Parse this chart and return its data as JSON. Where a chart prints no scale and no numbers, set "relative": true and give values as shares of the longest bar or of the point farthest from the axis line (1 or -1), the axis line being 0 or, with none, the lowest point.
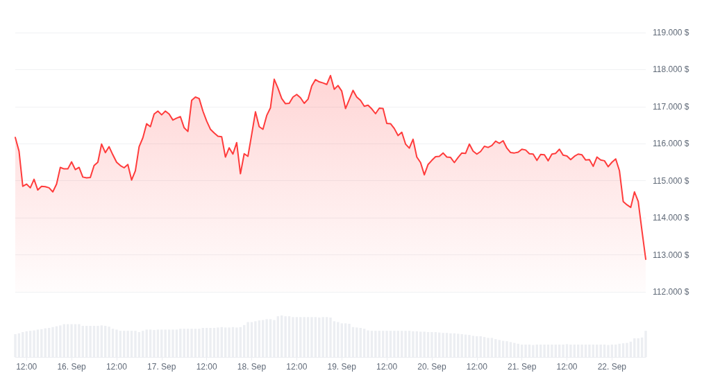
{
  "chart_data": [
    {
      "type": "area",
      "grid": "y",
      "tick_labels": "y",
      "x": [
        "--09-15T09:00",
        "--09-15T10:00",
        "--09-15T11:00",
        "--09-15T12:00",
        "--09-15T13:00",
        "--09-15T14:00",
        "--09-15T15:00",
        "--09-15T16:00",
        "--09-15T17:00",
        "--09-15T18:00",
        "--09-15T19:00",
        "--09-15T20:00",
        "--09-15T21:00",
        "--09-15T22:00",
        "--09-15T23:00",
        "--09-16T00:00",
        "--09-16T01:00",
        "--09-16T02:00",
        "--09-16T03:00",
        "--09-16T04:00",
        "--09-16T05:00",
        "--09-16T06:00",
        "--09-16T07:00",
        "--09-16T08:00",
        "--09-16T09:00",
        "--09-16T10:00",
        "--09-16T11:00",
        "--09-16T12:00",
        "--09-16T13:00",
        "--09-16T14:00",
        "--09-16T15:00",
        "--09-16T16:00",
        "--09-16T17:00",
        "--09-16T18:00",
        "--09-16T19:00",
        "--09-16T20:00",
        "--09-16T21:00",
        "--09-16T22:00",
        "--09-16T23:00",
        "--09-17T00:00",
        "--09-17T01:00",
        "--09-17T02:00",
        "--09-17T03:00",
        "--09-17T04:00",
        "--09-17T05:00",
        "--09-17T06:00",
        "--09-17T07:00",
        "--09-17T08:00",
        "--09-17T09:00",
        "--09-17T10:00",
        "--09-17T11:00",
        "--09-17T12:00",
        "--09-17T13:00",
        "--09-17T14:00",
        "--09-17T15:00",
        "--09-17T16:00",
        "--09-17T17:00",
        "--09-17T18:00",
        "--09-17T19:00",
        "--09-17T20:00",
        "--09-17T21:00",
        "--09-17T22:00",
        "--09-17T23:00",
        "--09-18T00:00",
        "--09-18T01:00",
        "--09-18T02:00",
        "--09-18T03:00",
        "--09-18T04:00",
        "--09-18T05:00",
        "--09-18T06:00",
        "--09-18T07:00",
        "--09-18T08:00",
        "--09-18T09:00",
        "--09-18T10:00",
        "--09-18T11:00",
        "--09-18T12:00",
        "--09-18T13:00",
        "--09-18T14:00",
        "--09-18T15:00",
        "--09-18T16:00",
        "--09-18T17:00",
        "--09-18T18:00",
        "--09-18T19:00",
        "--09-18T20:00",
        "--09-18T21:00",
        "--09-18T22:00",
        "--09-18T23:00",
        "--09-19T00:00",
        "--09-19T01:00",
        "--09-19T02:00",
        "--09-19T03:00",
        "--09-19T04:00",
        "--09-19T05:00",
        "--09-19T06:00",
        "--09-19T07:00",
        "--09-19T08:00",
        "--09-19T09:00",
        "--09-19T10:00",
        "--09-19T11:00",
        "--09-19T12:00",
        "--09-19T13:00",
        "--09-19T14:00",
        "--09-19T15:00",
        "--09-19T16:00",
        "--09-19T17:00",
        "--09-19T18:00",
        "--09-19T19:00",
        "--09-19T20:00",
        "--09-19T21:00",
        "--09-19T22:00",
        "--09-19T23:00",
        "--09-20T00:00",
        "--09-20T01:00",
        "--09-20T02:00",
        "--09-20T03:00",
        "--09-20T04:00",
        "--09-20T05:00",
        "--09-20T06:00",
        "--09-20T07:00",
        "--09-20T08:00",
        "--09-20T09:00",
        "--09-20T10:00",
        "--09-20T11:00",
        "--09-20T12:00",
        "--09-20T13:00",
        "--09-20T14:00",
        "--09-20T15:00",
        "--09-20T16:00",
        "--09-20T17:00",
        "--09-20T18:00",
        "--09-20T19:00",
        "--09-20T20:00",
        "--09-20T21:00",
        "--09-20T22:00",
        "--09-20T23:00",
        "--09-21T00:00",
        "--09-21T01:00",
        "--09-21T02:00",
        "--09-21T03:00",
        "--09-21T04:00",
        "--09-21T05:00",
        "--09-21T06:00",
        "--09-21T07:00",
        "--09-21T08:00",
        "--09-21T09:00",
        "--09-21T10:00",
        "--09-21T11:00",
        "--09-21T12:00",
        "--09-21T13:00",
        "--09-21T14:00",
        "--09-21T15:00",
        "--09-21T16:00",
        "--09-21T17:00",
        "--09-21T18:00",
        "--09-21T19:00",
        "--09-21T20:00",
        "--09-21T21:00",
        "--09-21T22:00",
        "--09-21T23:00",
        "--09-22T00:00",
        "--09-22T01:00",
        "--09-22T02:00",
        "--09-22T03:00",
        "--09-22T04:00",
        "--09-22T05:00",
        "--09-22T06:00",
        "--09-22T07:00",
        "--09-22T08:00",
        "--09-22T09:00"
      ],
      "series": [
        {
          "color": "#ff3b3b",
          "values": [
            116170,
            115800,
            114850,
            114910,
            114810,
            115040,
            114750,
            114850,
            114840,
            114810,
            114700,
            114910,
            115360,
            115320,
            115320,
            115510,
            115300,
            115360,
            115100,
            115080,
            115090,
            115410,
            115500,
            115990,
            115760,
            115920,
            115700,
            115500,
            115410,
            115350,
            115440,
            115020,
            115270,
            115920,
            116160,
            116540,
            116460,
            116800,
            116880,
            116780,
            116880,
            116800,
            116640,
            116690,
            116730,
            116430,
            116330,
            117170,
            117260,
            117220,
            116880,
            116610,
            116390,
            116290,
            116200,
            116190,
            115640,
            115890,
            115720,
            116030,
            115190,
            115730,
            115660,
            116250,
            116860,
            116460,
            116390,
            116760,
            116970,
            117740,
            117500,
            117220,
            117080,
            117090,
            117260,
            117330,
            117240,
            117090,
            117200,
            117560,
            117730,
            117670,
            117640,
            117600,
            117840,
            117470,
            117570,
            117420,
            116950,
            117190,
            117440,
            117260,
            117170,
            117010,
            117040,
            116940,
            116810,
            116960,
            116950,
            116550,
            116540,
            116410,
            116220,
            116310,
            115990,
            115880,
            116120,
            115640,
            115490,
            115160,
            115440,
            115550,
            115650,
            115660,
            115750,
            115640,
            115630,
            115490,
            115630,
            115750,
            115740,
            115990,
            115800,
            115720,
            115790,
            115930,
            115900,
            115950,
            116070,
            116010,
            116080,
            115880,
            115760,
            115750,
            115770,
            115850,
            115830,
            115730,
            115720,
            115550,
            115710,
            115700,
            115540,
            115720,
            115740,
            115850,
            115690,
            115670,
            115570,
            115660,
            115720,
            115700,
            115560,
            115570,
            115390,
            115640,
            115560,
            115540,
            115380,
            115500,
            115590,
            115270,
            114440,
            114350,
            114280,
            114700,
            114440,
            113650,
            112880
          ]
        }
      ],
      "xlim": [
        "--09-15T09:00",
        "--09-22T09:00"
      ],
      "ylim": [
        112000,
        119000
      ],
      "yticks": [
        {
          "value": 112000,
          "label": "112.000 $"
        },
        {
          "value": 113000,
          "label": "113.000 $"
        },
        {
          "value": 114000,
          "label": "114.000 $"
        },
        {
          "value": 115000,
          "label": "115.000 $"
        },
        {
          "value": 116000,
          "label": "116.000 $"
        },
        {
          "value": 117000,
          "label": "117.000 $"
        },
        {
          "value": 118000,
          "label": "118.000 $"
        },
        {
          "value": 119000,
          "label": "119.000 $"
        }
      ]
    },
    {
      "type": "bar",
      "relative": true,
      "x": [
        "--09-15T09:00",
        "--09-15T10:00",
        "--09-15T11:00",
        "--09-15T12:00",
        "--09-15T13:00",
        "--09-15T14:00",
        "--09-15T15:00",
        "--09-15T16:00",
        "--09-15T17:00",
        "--09-15T18:00",
        "--09-15T19:00",
        "--09-15T20:00",
        "--09-15T21:00",
        "--09-15T22:00",
        "--09-15T23:00",
        "--09-16T00:00",
        "--09-16T01:00",
        "--09-16T02:00",
        "--09-16T03:00",
        "--09-16T04:00",
        "--09-16T05:00",
        "--09-16T06:00",
        "--09-16T07:00",
        "--09-16T08:00",
        "--09-16T09:00",
        "--09-16T10:00",
        "--09-16T11:00",
        "--09-16T12:00",
        "--09-16T13:00",
        "--09-16T14:00",
        "--09-16T15:00",
        "--09-16T16:00",
        "--09-16T17:00",
        "--09-16T18:00",
        "--09-16T19:00",
        "--09-16T20:00",
        "--09-16T21:00",
        "--09-16T22:00",
        "--09-16T23:00",
        "--09-17T00:00",
        "--09-17T01:00",
        "--09-17T02:00",
        "--09-17T03:00",
        "--09-17T04:00",
        "--09-17T05:00",
        "--09-17T06:00",
        "--09-17T07:00",
        "--09-17T08:00",
        "--09-17T09:00",
        "--09-17T10:00",
        "--09-17T11:00",
        "--09-17T12:00",
        "--09-17T13:00",
        "--09-17T14:00",
        "--09-17T15:00",
        "--09-17T16:00",
        "--09-17T17:00",
        "--09-17T18:00",
        "--09-17T19:00",
        "--09-17T20:00",
        "--09-17T21:00",
        "--09-17T22:00",
        "--09-17T23:00",
        "--09-18T00:00",
        "--09-18T01:00",
        "--09-18T02:00",
        "--09-18T03:00",
        "--09-18T04:00",
        "--09-18T05:00",
        "--09-18T06:00",
        "--09-18T07:00",
        "--09-18T08:00",
        "--09-18T09:00",
        "--09-18T10:00",
        "--09-18T11:00",
        "--09-18T12:00",
        "--09-18T13:00",
        "--09-18T14:00",
        "--09-18T15:00",
        "--09-18T16:00",
        "--09-18T17:00",
        "--09-18T18:00",
        "--09-18T19:00",
        "--09-18T20:00",
        "--09-18T21:00",
        "--09-18T22:00",
        "--09-18T23:00",
        "--09-19T00:00",
        "--09-19T01:00",
        "--09-19T02:00",
        "--09-19T03:00",
        "--09-19T04:00",
        "--09-19T05:00",
        "--09-19T06:00",
        "--09-19T07:00",
        "--09-19T08:00",
        "--09-19T09:00",
        "--09-19T10:00",
        "--09-19T11:00",
        "--09-19T12:00",
        "--09-19T13:00",
        "--09-19T14:00",
        "--09-19T15:00",
        "--09-19T16:00",
        "--09-19T17:00",
        "--09-19T18:00",
        "--09-19T19:00",
        "--09-19T20:00",
        "--09-19T21:00",
        "--09-19T22:00",
        "--09-19T23:00",
        "--09-20T00:00",
        "--09-20T01:00",
        "--09-20T02:00",
        "--09-20T03:00",
        "--09-20T04:00",
        "--09-20T05:00",
        "--09-20T06:00",
        "--09-20T07:00",
        "--09-20T08:00",
        "--09-20T09:00",
        "--09-20T10:00",
        "--09-20T11:00",
        "--09-20T12:00",
        "--09-20T13:00",
        "--09-20T14:00",
        "--09-20T15:00",
        "--09-20T16:00",
        "--09-20T17:00",
        "--09-20T18:00",
        "--09-20T19:00",
        "--09-20T20:00",
        "--09-20T21:00",
        "--09-20T22:00",
        "--09-20T23:00",
        "--09-21T00:00",
        "--09-21T01:00",
        "--09-21T02:00",
        "--09-21T03:00",
        "--09-21T04:00",
        "--09-21T05:00",
        "--09-21T06:00",
        "--09-21T07:00",
        "--09-21T08:00",
        "--09-21T09:00",
        "--09-21T10:00",
        "--09-21T11:00",
        "--09-21T12:00",
        "--09-21T13:00",
        "--09-21T14:00",
        "--09-21T15:00",
        "--09-21T16:00",
        "--09-21T17:00",
        "--09-21T18:00",
        "--09-21T19:00",
        "--09-21T20:00",
        "--09-21T21:00",
        "--09-21T22:00",
        "--09-21T23:00",
        "--09-22T00:00",
        "--09-22T01:00",
        "--09-22T02:00",
        "--09-22T03:00",
        "--09-22T04:00",
        "--09-22T05:00",
        "--09-22T06:00",
        "--09-22T07:00",
        "--09-22T08:00",
        "--09-22T09:00"
      ],
      "series": [
        {
          "color": "#eceef2",
          "values": [
            0.55,
            0.57,
            0.6,
            0.62,
            0.63,
            0.64,
            0.66,
            0.67,
            0.69,
            0.7,
            0.72,
            0.74,
            0.76,
            0.79,
            0.79,
            0.79,
            0.79,
            0.79,
            0.75,
            0.75,
            0.75,
            0.75,
            0.75,
            0.76,
            0.75,
            0.73,
            0.68,
            0.66,
            0.63,
            0.63,
            0.63,
            0.63,
            0.63,
            0.6,
            0.63,
            0.66,
            0.66,
            0.65,
            0.66,
            0.66,
            0.66,
            0.66,
            0.66,
            0.66,
            0.68,
            0.68,
            0.68,
            0.68,
            0.68,
            0.68,
            0.7,
            0.7,
            0.7,
            0.7,
            0.71,
            0.72,
            0.71,
            0.71,
            0.72,
            0.71,
            0.72,
            0.77,
            0.84,
            0.84,
            0.86,
            0.88,
            0.89,
            0.91,
            0.91,
            0.89,
            0.98,
            1,
            0.98,
            0.98,
            0.96,
            0.96,
            0.96,
            0.96,
            0.96,
            0.96,
            0.96,
            0.95,
            0.96,
            0.96,
            0.95,
            0.86,
            0.84,
            0.81,
            0.81,
            0.8,
            0.72,
            0.71,
            0.7,
            0.68,
            0.64,
            0.63,
            0.63,
            0.63,
            0.63,
            0.63,
            0.63,
            0.63,
            0.63,
            0.63,
            0.63,
            0.63,
            0.62,
            0.62,
            0.61,
            0.61,
            0.6,
            0.6,
            0.6,
            0.59,
            0.58,
            0.58,
            0.57,
            0.57,
            0.56,
            0.55,
            0.54,
            0.53,
            0.51,
            0.5,
            0.5,
            0.48,
            0.46,
            0.46,
            0.43,
            0.41,
            0.39,
            0.38,
            0.36,
            0.34,
            0.32,
            0.3,
            0.3,
            0.3,
            0.29,
            0.3,
            0.3,
            0.3,
            0.3,
            0.3,
            0.3,
            0.3,
            0.3,
            0.31,
            0.3,
            0.3,
            0.3,
            0.3,
            0.3,
            0.3,
            0.3,
            0.3,
            0.3,
            0.3,
            0.29,
            0.3,
            0.3,
            0.32,
            0.33,
            0.34,
            0.37,
            0.45,
            0.45,
            0.47,
            0.63
          ]
        }
      ],
      "xlim": [
        "--09-15T09:00",
        "--09-22T09:00"
      ],
      "xticks": [
        {
          "value": "--09-15T12:00",
          "label": "12:00"
        },
        {
          "value": "--09-16T00:00",
          "label": "16. Sep"
        },
        {
          "value": "--09-16T12:00",
          "label": "12:00"
        },
        {
          "value": "--09-17T00:00",
          "label": "17. Sep"
        },
        {
          "value": "--09-17T12:00",
          "label": "12:00"
        },
        {
          "value": "--09-18T00:00",
          "label": "18. Sep"
        },
        {
          "value": "--09-18T12:00",
          "label": "12:00"
        },
        {
          "value": "--09-19T00:00",
          "label": "19. Sep"
        },
        {
          "value": "--09-19T12:00",
          "label": "12:00"
        },
        {
          "value": "--09-20T00:00",
          "label": "20. Sep"
        },
        {
          "value": "--09-20T12:00",
          "label": "12:00"
        },
        {
          "value": "--09-21T00:00",
          "label": "21. Sep"
        },
        {
          "value": "--09-21T12:00",
          "label": "12:00"
        },
        {
          "value": "--09-22T00:00",
          "label": "22. Sep"
        }
      ]
    }
  ]
}
